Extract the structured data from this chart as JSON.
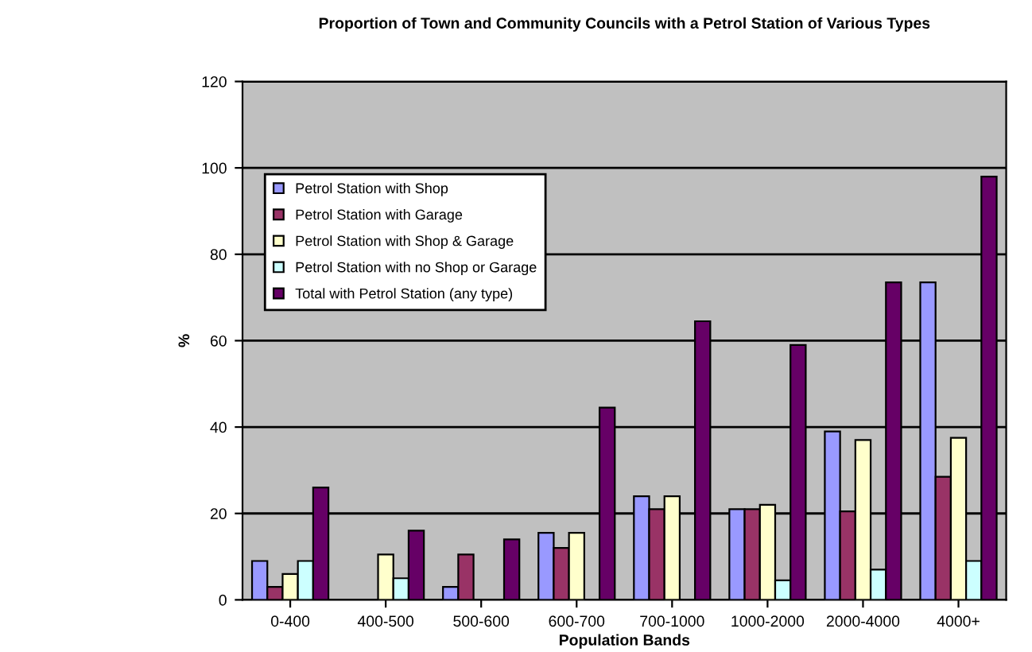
{
  "chart_data": {
    "type": "bar",
    "title": "Proportion of Town and Community Councils with a Petrol Station of Various Types",
    "xlabel": "Population Bands",
    "ylabel": "%",
    "categories": [
      "0-400",
      "400-500",
      "500-600",
      "600-700",
      "700-1000",
      "1000-2000",
      "2000-4000",
      "4000+"
    ],
    "series": [
      {
        "name": "Petrol Station with Shop",
        "color": "#9999ff",
        "values": [
          9,
          null,
          3,
          15.5,
          24,
          21,
          39,
          73.5
        ]
      },
      {
        "name": "Petrol Station with Garage",
        "color": "#993366",
        "values": [
          3,
          null,
          10.5,
          12,
          21,
          21,
          20.5,
          28.5
        ]
      },
      {
        "name": "Petrol Station with Shop & Garage",
        "color": "#ffffcc",
        "values": [
          6,
          10.5,
          null,
          15.5,
          24,
          22,
          37,
          37.5
        ]
      },
      {
        "name": "Petrol Station with no Shop or Garage",
        "color": "#ccffff",
        "values": [
          9,
          5,
          null,
          null,
          null,
          4.5,
          7,
          9
        ]
      },
      {
        "name": "Total with Petrol Station (any type)",
        "color": "#660066",
        "values": [
          26,
          16,
          14,
          44.5,
          64.5,
          59,
          73.5,
          98
        ]
      }
    ],
    "ylim": [
      0,
      120
    ],
    "yticks": [
      0,
      20,
      40,
      60,
      80,
      100,
      120
    ],
    "grid": "y",
    "legend": "top left"
  }
}
